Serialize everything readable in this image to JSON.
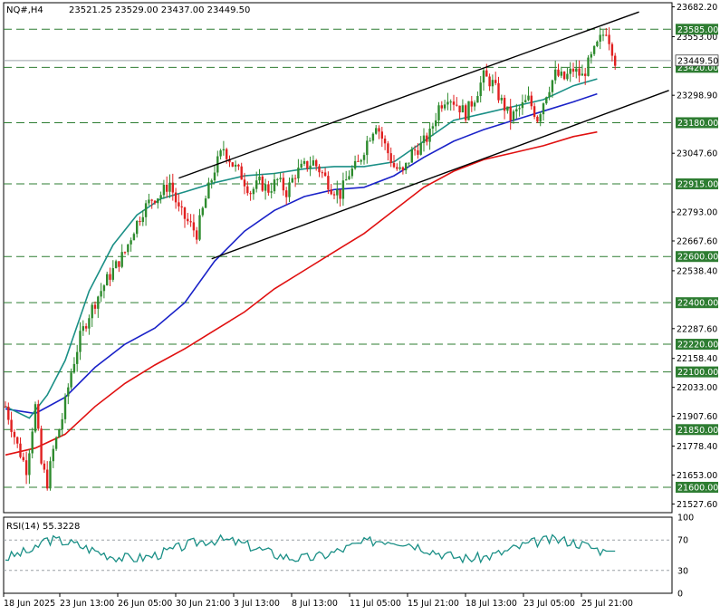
{
  "header": {
    "symbol": "NQ#,H4",
    "ohlc": "23521.25 23529.00 23437.00 23449.50"
  },
  "rsi_label": "RSI(14) 55.3228",
  "colors": {
    "bull": "#2e8b2e",
    "bear": "#e02020",
    "ma_fast": "#1a8f86",
    "ma_mid": "#1a22c8",
    "ma_slow": "#e01010",
    "level_line": "#2e7d32",
    "channel": "#000000",
    "rsi": "#1a8f86",
    "tag_bg": "#2e7d32",
    "tag_text": "#ffffff",
    "price_tag_bg": "#ffffff"
  },
  "chart_data": {
    "type": "candlestick",
    "title": "NQ#,H4",
    "x_tick_labels": [
      "18 Jun 2025",
      "23 Jun 13:00",
      "26 Jun 05:00",
      "30 Jun 21:00",
      "3 Jul 13:00",
      "8 Jul 13:00",
      "11 Jul 05:00",
      "15 Jul 21:00",
      "18 Jul 13:00",
      "23 Jul 05:00",
      "25 Jul 21:00"
    ],
    "y_tick_labels": [
      "23682.20",
      "23553.00",
      "23298.90",
      "23047.60",
      "22793.00",
      "22667.60",
      "22538.40",
      "22287.60",
      "22158.40",
      "22033.00",
      "21907.60",
      "21778.40",
      "21653.00",
      "21527.60"
    ],
    "ylim": [
      21490,
      23700
    ],
    "levels": [
      23585.0,
      23420.0,
      23180.0,
      22915.0,
      22600.0,
      22400.0,
      22220.0,
      22100.0,
      21850.0,
      21600.0
    ],
    "current_price": 23449.5,
    "current_price_label": "23449.50",
    "channel_upper": [
      [
        58,
        22940
      ],
      [
        212,
        23660
      ]
    ],
    "channel_lower": [
      [
        69,
        22590
      ],
      [
        222,
        23320
      ]
    ],
    "ma_fast": [
      [
        0,
        21950
      ],
      [
        8,
        21900
      ],
      [
        14,
        22000
      ],
      [
        20,
        22150
      ],
      [
        28,
        22450
      ],
      [
        36,
        22650
      ],
      [
        44,
        22780
      ],
      [
        52,
        22850
      ],
      [
        60,
        22880
      ],
      [
        70,
        22920
      ],
      [
        80,
        22950
      ],
      [
        90,
        22960
      ],
      [
        100,
        22980
      ],
      [
        110,
        22990
      ],
      [
        120,
        22990
      ],
      [
        130,
        23010
      ],
      [
        140,
        23100
      ],
      [
        150,
        23190
      ],
      [
        160,
        23220
      ],
      [
        170,
        23250
      ],
      [
        180,
        23280
      ],
      [
        190,
        23340
      ],
      [
        198,
        23370
      ]
    ],
    "ma_mid": [
      [
        0,
        21940
      ],
      [
        10,
        21920
      ],
      [
        20,
        21990
      ],
      [
        30,
        22120
      ],
      [
        40,
        22220
      ],
      [
        50,
        22290
      ],
      [
        60,
        22400
      ],
      [
        70,
        22580
      ],
      [
        80,
        22710
      ],
      [
        90,
        22800
      ],
      [
        100,
        22860
      ],
      [
        110,
        22890
      ],
      [
        120,
        22900
      ],
      [
        130,
        22950
      ],
      [
        140,
        23030
      ],
      [
        150,
        23100
      ],
      [
        160,
        23150
      ],
      [
        170,
        23190
      ],
      [
        180,
        23230
      ],
      [
        190,
        23270
      ],
      [
        198,
        23305
      ]
    ],
    "ma_slow": [
      [
        0,
        21740
      ],
      [
        10,
        21770
      ],
      [
        20,
        21830
      ],
      [
        30,
        21950
      ],
      [
        40,
        22050
      ],
      [
        50,
        22130
      ],
      [
        60,
        22200
      ],
      [
        70,
        22280
      ],
      [
        80,
        22360
      ],
      [
        90,
        22460
      ],
      [
        100,
        22540
      ],
      [
        110,
        22620
      ],
      [
        120,
        22700
      ],
      [
        130,
        22800
      ],
      [
        140,
        22900
      ],
      [
        150,
        22970
      ],
      [
        160,
        23020
      ],
      [
        170,
        23050
      ],
      [
        180,
        23080
      ],
      [
        190,
        23120
      ],
      [
        198,
        23140
      ]
    ],
    "rsi": {
      "name": "RSI(14)",
      "value": 55.3228,
      "ylim": [
        0,
        100
      ],
      "levels": [
        70,
        30
      ],
      "tick_labels": [
        "100",
        "70",
        "30",
        "0"
      ]
    }
  }
}
